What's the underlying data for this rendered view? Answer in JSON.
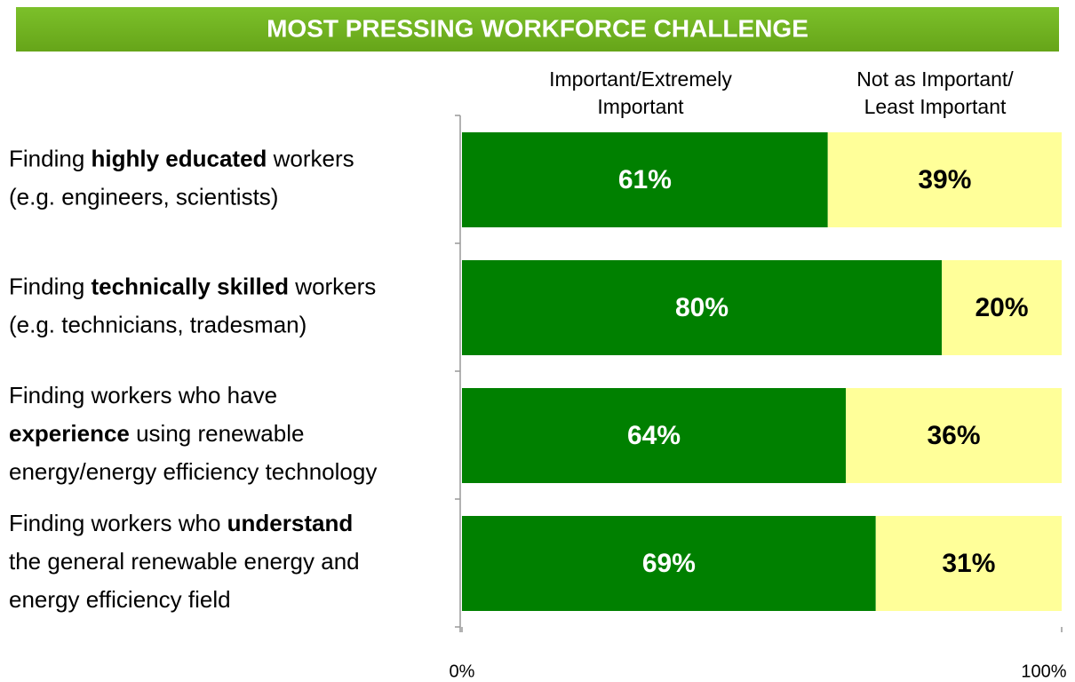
{
  "chart_data": {
    "type": "stacked_barh",
    "title": "MOST PRESSING WORKFORCE CHALLENGE",
    "categories": [
      [
        [
          {
            "text": "Finding "
          },
          {
            "text": "highly educated",
            "bold": true
          },
          {
            "text": " workers"
          }
        ],
        [
          {
            "text": "(e.g. engineers, scientists)"
          }
        ]
      ],
      [
        [
          {
            "text": "Finding "
          },
          {
            "text": "technically skilled",
            "bold": true
          },
          {
            "text": " workers"
          }
        ],
        [
          {
            "text": "(e.g. technicians, tradesman)"
          }
        ]
      ],
      [
        [
          {
            "text": "Finding workers who have"
          }
        ],
        [
          {
            "text": "experience",
            "bold": true
          },
          {
            "text": " using renewable"
          }
        ],
        [
          {
            "text": "energy/energy efficiency technology"
          }
        ]
      ],
      [
        [
          {
            "text": "Finding workers who "
          },
          {
            "text": "understand",
            "bold": true
          }
        ],
        [
          {
            "text": "the general renewable energy and"
          }
        ],
        [
          {
            "text": "energy efficiency field"
          }
        ]
      ]
    ],
    "series": [
      {
        "name": "Important/Extremely Important",
        "color": "#008000",
        "label_color": "#ffffff",
        "values": [
          61,
          80,
          64,
          69
        ],
        "value_labels": [
          "61%",
          "80%",
          "64%",
          "69%"
        ]
      },
      {
        "name": "Not as Important/ Least Important",
        "color": "#ffff99",
        "label_color": "#000000",
        "values": [
          39,
          20,
          36,
          31
        ],
        "value_labels": [
          "39%",
          "20%",
          "36%",
          "31%"
        ]
      }
    ],
    "xlim": [
      0,
      100
    ],
    "xticks": [
      {
        "value": 0,
        "label": "0%"
      },
      {
        "value": 100,
        "label": "100%"
      }
    ]
  }
}
